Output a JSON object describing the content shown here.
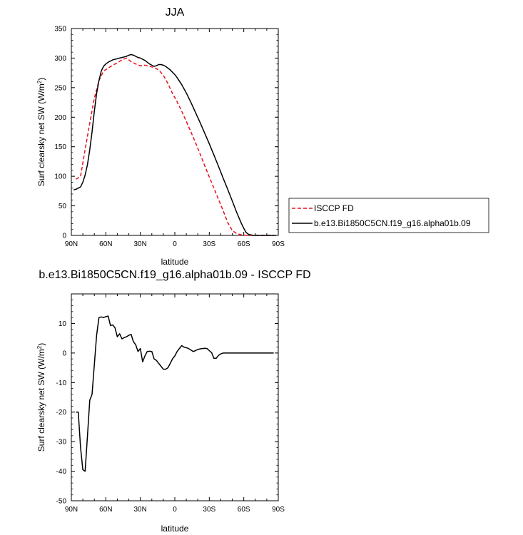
{
  "chart_data": [
    {
      "type": "line",
      "title": "JJA",
      "xlabel": "latitude",
      "ylabel": "Surf clearsky net SW (W/m",
      "ylabel_superscript": "2",
      "ylabel_suffix": ")",
      "xlim": [
        90,
        -90
      ],
      "ylim": [
        0,
        350
      ],
      "xticks": [
        90,
        60,
        30,
        0,
        -30,
        -60,
        -90
      ],
      "xtick_labels": [
        "90N",
        "60N",
        "30N",
        "0",
        "30S",
        "60S",
        "90S"
      ],
      "yticks": [
        0,
        50,
        100,
        150,
        200,
        250,
        300,
        350
      ],
      "ytick_labels": [
        "0",
        "50",
        "100",
        "150",
        "200",
        "250",
        "300",
        "350"
      ],
      "legend": "right",
      "series": [
        {
          "name": "ISCCP FD",
          "color": "#e8111c",
          "dash": "dashed",
          "x": [
            86,
            82,
            78,
            74,
            70,
            66,
            62,
            58,
            54,
            50,
            46,
            42,
            38,
            34,
            30,
            26,
            22,
            18,
            14,
            10,
            6,
            2,
            -2,
            -6,
            -10,
            -14,
            -18,
            -22,
            -26,
            -30,
            -34,
            -38,
            -42,
            -46,
            -50,
            -54,
            -58,
            -62,
            -64,
            -66,
            -68,
            -70,
            -74,
            -78,
            -82,
            -86
          ],
          "values": [
            95,
            100,
            145,
            190,
            232,
            262,
            278,
            283,
            288,
            292,
            297,
            300,
            294,
            290,
            287,
            288,
            286,
            284,
            280,
            271,
            257,
            240,
            226,
            210,
            193,
            175,
            157,
            138,
            118,
            99,
            80,
            61,
            42,
            22,
            8,
            3,
            1,
            0,
            0,
            0,
            0,
            0,
            0,
            0,
            0,
            0
          ]
        },
        {
          "name": "b.e13.Bi1850C5CN.f19_g16.alpha01b.09",
          "color": "#000000",
          "dash": "solid",
          "x": [
            88,
            86,
            84,
            82,
            80,
            78,
            76,
            74,
            72,
            70,
            68,
            66,
            64,
            62,
            60,
            58,
            56,
            54,
            52,
            50,
            48,
            46,
            44,
            42,
            40,
            38,
            36,
            34,
            32,
            30,
            28,
            26,
            24,
            22,
            20,
            18,
            16,
            14,
            12,
            10,
            8,
            6,
            4,
            2,
            0,
            -2,
            -6,
            -10,
            -14,
            -18,
            -22,
            -26,
            -30,
            -34,
            -38,
            -42,
            -46,
            -50,
            -54,
            -58,
            -60,
            -62,
            -64,
            -66,
            -68,
            -70,
            -74,
            -78,
            -82,
            -86,
            -88
          ],
          "values": [
            77,
            78,
            80,
            82,
            90,
            102,
            120,
            145,
            175,
            210,
            240,
            262,
            278,
            286,
            290,
            293,
            295,
            297,
            298,
            299,
            300,
            301,
            302,
            303,
            305,
            306,
            305,
            303,
            301,
            300,
            298,
            296,
            293,
            290,
            288,
            286,
            287,
            289,
            289,
            288,
            286,
            283,
            280,
            276,
            272,
            267,
            255,
            241,
            225,
            208,
            191,
            173,
            155,
            136,
            117,
            97,
            78,
            58,
            38,
            20,
            12,
            5,
            2,
            1,
            0,
            0,
            0,
            0,
            0,
            0,
            0
          ]
        }
      ]
    },
    {
      "type": "line",
      "title": "b.e13.Bi1850C5CN.f19_g16.alpha01b.09 - ISCCP FD",
      "xlabel": "latitude",
      "ylabel": "Surf clearsky net SW (W/m",
      "ylabel_superscript": "2",
      "ylabel_suffix": ")",
      "xlim": [
        90,
        -90
      ],
      "ylim": [
        -50,
        20
      ],
      "xticks": [
        90,
        60,
        30,
        0,
        -30,
        -60,
        -90
      ],
      "xtick_labels": [
        "90N",
        "60N",
        "30N",
        "0",
        "30S",
        "60S",
        "90S"
      ],
      "yticks": [
        -50,
        -40,
        -30,
        -20,
        -10,
        0,
        10
      ],
      "ytick_labels": [
        "-50",
        "-40",
        "-30",
        "-20",
        "-10",
        "0",
        "10"
      ],
      "series": [
        {
          "color": "#000000",
          "dash": "solid",
          "x": [
            86,
            84,
            82,
            80,
            78,
            76,
            74,
            72,
            70,
            68,
            66,
            64,
            62,
            60,
            58,
            56,
            54,
            52,
            50,
            48,
            46,
            44,
            42,
            40,
            38,
            36,
            34,
            32,
            30,
            28,
            26,
            24,
            22,
            20,
            18,
            16,
            14,
            12,
            10,
            8,
            6,
            4,
            2,
            0,
            -2,
            -4,
            -6,
            -8,
            -10,
            -12,
            -14,
            -16,
            -18,
            -20,
            -22,
            -24,
            -26,
            -28,
            -30,
            -32,
            -34,
            -36,
            -38,
            -40,
            -42,
            -44,
            -46,
            -48,
            -50,
            -52,
            -54,
            -56,
            -58,
            -60,
            -62,
            -64,
            -66,
            -68,
            -70,
            -74,
            -78,
            -82,
            -86
          ],
          "values": [
            -20,
            -20,
            -32,
            -39.5,
            -40,
            -28,
            -16,
            -14,
            -4,
            6,
            12,
            12.2,
            12,
            12.3,
            12.5,
            9.3,
            9.5,
            8.5,
            5.5,
            6.5,
            4.8,
            5.2,
            5.5,
            6,
            6.3,
            3.8,
            2.8,
            0.5,
            1.5,
            -3,
            -1,
            0.5,
            0.6,
            0.5,
            -2,
            -2.5,
            -3.5,
            -4.5,
            -5.5,
            -5.5,
            -5,
            -3.5,
            -2,
            -1,
            0.5,
            1.5,
            2.5,
            2,
            1.8,
            1.5,
            1,
            0.5,
            0.8,
            1.2,
            1.4,
            1.5,
            1.6,
            1.5,
            0.8,
            0.1,
            -1.8,
            -1.8,
            -0.8,
            -0.3,
            0,
            0,
            0,
            0,
            0,
            0,
            0,
            0,
            0,
            0,
            0,
            0,
            0,
            0,
            0,
            0,
            0,
            0,
            0
          ]
        }
      ]
    }
  ]
}
